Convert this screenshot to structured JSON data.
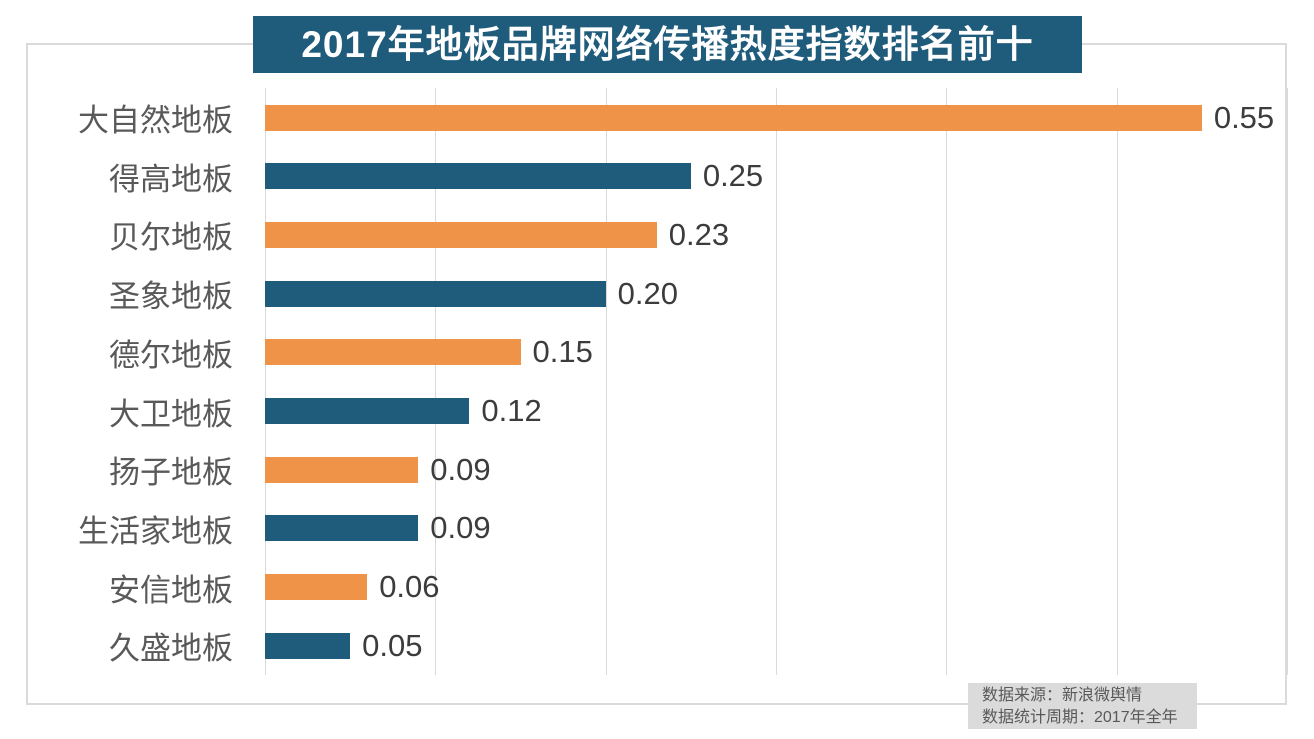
{
  "chart_data": {
    "type": "bar",
    "orientation": "horizontal",
    "title": "2017年地板品牌网络传播热度指数排名前十",
    "categories": [
      "大自然地板",
      "得高地板",
      "贝尔地板",
      "圣象地板",
      "德尔地板",
      "大卫地板",
      "扬子地板",
      "生活家地板",
      "安信地板",
      "久盛地板"
    ],
    "values": [
      0.55,
      0.25,
      0.23,
      0.2,
      0.15,
      0.12,
      0.09,
      0.09,
      0.06,
      0.05
    ],
    "value_labels": [
      "0.55",
      "0.25",
      "0.23",
      "0.20",
      "0.15",
      "0.12",
      "0.09",
      "0.09",
      "0.06",
      "0.05"
    ],
    "xlim": [
      0,
      0.6
    ],
    "gridline_interval": 0.1,
    "grid": "vertical gridlines only, no axis tick labels",
    "legend": "none",
    "bar_colors_alternate": [
      "#ef9349",
      "#1f5b7b"
    ]
  },
  "footer_note": {
    "source_line": "数据来源：新浪微舆情",
    "period_line": "数据统计周期：2017年全年"
  },
  "colors": {
    "title_banner_bg": "#1f5b7b",
    "title_banner_text": "#ffffff",
    "orange_bar": "#ef9349",
    "blue_bar": "#1f5b7b",
    "gridline": "#d9d9d9",
    "frame_border": "#dadada",
    "category_text": "#595959",
    "value_text": "#3c3c3c",
    "footer_bg": "#dbdbdb",
    "footer_text": "#595959",
    "background": "#ffffff"
  }
}
